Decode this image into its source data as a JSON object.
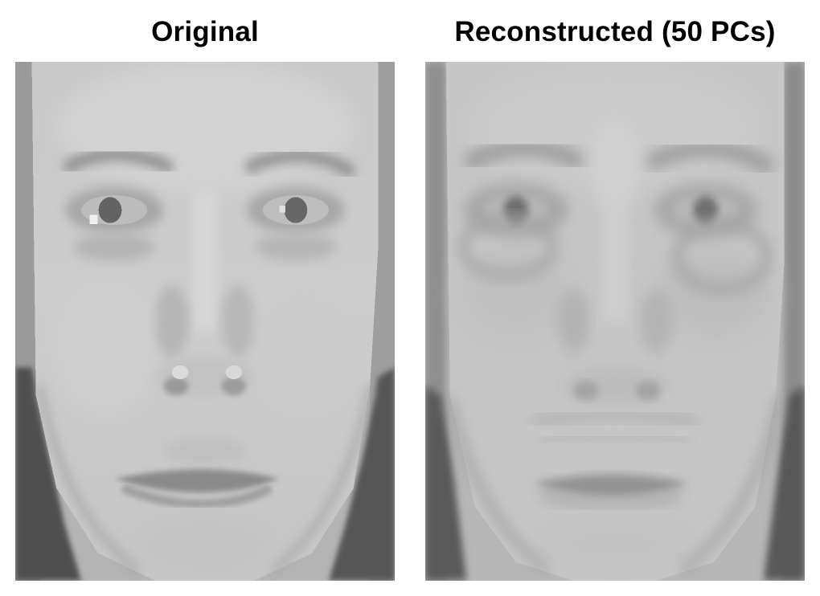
{
  "panels": [
    {
      "id": "original",
      "title": "Original",
      "image": "face-photo-original-grayscale"
    },
    {
      "id": "reconstructed",
      "title": "Reconstructed (50 PCs)",
      "image": "face-photo-pca-reconstruction-grayscale"
    }
  ],
  "colors": {
    "background": "#ffffff",
    "title_text": "#000000",
    "skin_light": "#cfcfcf",
    "skin_mid": "#b8b8b8",
    "shadow_dark": "#5a5a5a",
    "hair_gray": "#9a9a9a"
  }
}
